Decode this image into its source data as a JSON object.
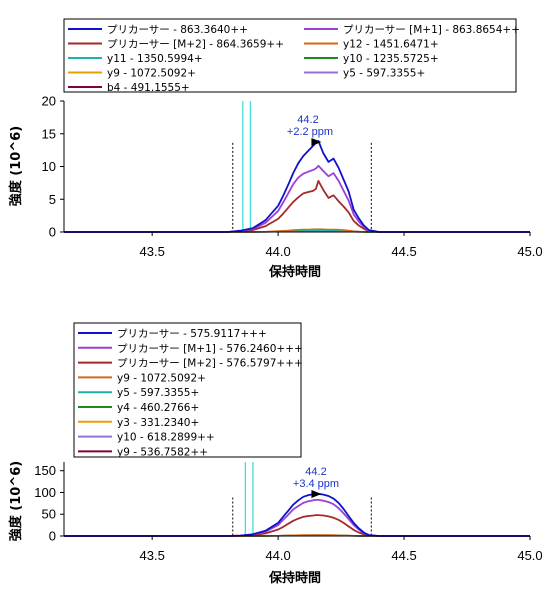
{
  "chart_data": [
    {
      "type": "line",
      "xlabel": "保持時間",
      "ylabel": "強度 (10^6)",
      "xlim": [
        43.15,
        45.0
      ],
      "ylim": [
        0,
        20
      ],
      "x_ticks": [
        "43.5",
        "44.0",
        "44.5",
        "45.0"
      ],
      "y_ticks": [
        "0",
        "5",
        "10",
        "15",
        "20"
      ],
      "legend_position": "top",
      "legend_columns": 2,
      "annotation": {
        "rt": "44.2",
        "ppm": "+2.2 ppm",
        "x": 44.18
      },
      "integration_bounds": [
        43.82,
        44.37
      ],
      "spectrum_markers": [
        43.86,
        43.89
      ],
      "x": [
        43.8,
        43.85,
        43.9,
        43.95,
        44.0,
        44.02,
        44.04,
        44.06,
        44.08,
        44.1,
        44.12,
        44.14,
        44.15,
        44.16,
        44.18,
        44.2,
        44.22,
        44.24,
        44.26,
        44.28,
        44.3,
        44.32,
        44.34,
        44.36,
        44.4
      ],
      "series": [
        {
          "name": "プリカーサー - 863.3640++",
          "color": "#1010d0",
          "values": [
            0,
            0.2,
            0.6,
            1.8,
            4.0,
            5.5,
            7.2,
            9.0,
            10.5,
            11.6,
            12.4,
            13.2,
            13.6,
            13.9,
            12.0,
            10.7,
            11.2,
            9.8,
            8.0,
            6.2,
            3.4,
            2.1,
            1.0,
            0.3,
            0
          ]
        },
        {
          "name": "プリカーサー [M+1] - 863.8654++",
          "color": "#9b3fd6",
          "values": [
            0,
            0.15,
            0.45,
            1.4,
            3.2,
            4.5,
            5.9,
            7.3,
            8.3,
            8.9,
            9.2,
            9.5,
            9.7,
            10.1,
            9.3,
            8.5,
            9.0,
            7.8,
            6.3,
            4.8,
            2.7,
            1.6,
            0.8,
            0.2,
            0
          ]
        },
        {
          "name": "プリカーサー [M+2] - 864.3659++",
          "color": "#a52a2a",
          "values": [
            0,
            0.1,
            0.3,
            0.9,
            2.0,
            2.8,
            3.7,
            4.6,
            5.3,
            5.9,
            6.1,
            6.3,
            6.6,
            7.8,
            6.4,
            5.2,
            5.6,
            4.7,
            3.9,
            3.0,
            1.7,
            1.0,
            0.5,
            0.1,
            0
          ]
        },
        {
          "name": "y12 - 1451.6471+",
          "color": "#d2691e",
          "values": [
            0,
            0,
            0.02,
            0.05,
            0.15,
            0.2,
            0.25,
            0.3,
            0.35,
            0.38,
            0.4,
            0.42,
            0.43,
            0.44,
            0.42,
            0.4,
            0.4,
            0.36,
            0.3,
            0.23,
            0.13,
            0.08,
            0.04,
            0.01,
            0
          ]
        },
        {
          "name": "y11 - 1350.5994+",
          "color": "#20b2aa",
          "values": [
            0,
            0,
            0.01,
            0.03,
            0.08,
            0.1,
            0.13,
            0.16,
            0.18,
            0.2,
            0.21,
            0.22,
            0.22,
            0.23,
            0.22,
            0.2,
            0.2,
            0.18,
            0.15,
            0.12,
            0.07,
            0.04,
            0.02,
            0,
            0
          ]
        },
        {
          "name": "y10 - 1235.5725+",
          "color": "#1a8a1a",
          "values": [
            0,
            0,
            0.01,
            0.03,
            0.08,
            0.11,
            0.14,
            0.17,
            0.19,
            0.21,
            0.22,
            0.23,
            0.23,
            0.24,
            0.22,
            0.21,
            0.21,
            0.19,
            0.16,
            0.12,
            0.07,
            0.04,
            0.02,
            0,
            0
          ]
        },
        {
          "name": "y9 - 1072.5092+",
          "color": "#e8a000",
          "values": [
            0,
            0,
            0.01,
            0.04,
            0.1,
            0.14,
            0.18,
            0.22,
            0.25,
            0.27,
            0.28,
            0.3,
            0.3,
            0.31,
            0.29,
            0.27,
            0.28,
            0.25,
            0.21,
            0.16,
            0.09,
            0.05,
            0.02,
            0,
            0
          ]
        },
        {
          "name": "y5 - 597.3355+",
          "color": "#9370db",
          "values": [
            0,
            0,
            0.01,
            0.02,
            0.05,
            0.07,
            0.09,
            0.11,
            0.12,
            0.13,
            0.14,
            0.15,
            0.15,
            0.15,
            0.14,
            0.13,
            0.14,
            0.12,
            0.1,
            0.08,
            0.05,
            0.03,
            0.01,
            0,
            0
          ]
        },
        {
          "name": "b4 - 491.1555+",
          "color": "#800040",
          "values": [
            0,
            0,
            0.01,
            0.02,
            0.04,
            0.05,
            0.06,
            0.07,
            0.08,
            0.09,
            0.09,
            0.1,
            0.1,
            0.1,
            0.1,
            0.09,
            0.09,
            0.08,
            0.07,
            0.05,
            0.03,
            0.02,
            0.01,
            0,
            0
          ]
        }
      ]
    },
    {
      "type": "line",
      "xlabel": "保持時間",
      "ylabel": "強度 (10^6)",
      "xlim": [
        43.15,
        45.0
      ],
      "ylim": [
        0,
        170
      ],
      "x_ticks": [
        "43.5",
        "44.0",
        "44.5",
        "45.0"
      ],
      "y_ticks": [
        "0",
        "50",
        "100",
        "150"
      ],
      "legend_position": "top",
      "legend_columns": 1,
      "annotation": {
        "rt": "44.2",
        "ppm": "+3.4 ppm",
        "x": 44.18
      },
      "integration_bounds": [
        43.82,
        44.37
      ],
      "spectrum_markers": [
        43.87,
        43.9
      ],
      "x": [
        43.8,
        43.85,
        43.9,
        43.95,
        44.0,
        44.02,
        44.04,
        44.06,
        44.08,
        44.1,
        44.12,
        44.14,
        44.15,
        44.16,
        44.18,
        44.2,
        44.22,
        44.24,
        44.26,
        44.28,
        44.3,
        44.32,
        44.34,
        44.36,
        44.4
      ],
      "series": [
        {
          "name": "プリカーサー - 575.9117+++",
          "color": "#1010d0",
          "values": [
            0,
            1,
            4,
            12,
            30,
            44,
            58,
            72,
            82,
            90,
            94,
            96,
            97,
            97,
            95,
            92,
            86,
            76,
            62,
            46,
            30,
            18,
            8,
            2,
            0
          ]
        },
        {
          "name": "プリカーサー [M+1] - 576.2460+++",
          "color": "#9b3fd6",
          "values": [
            0,
            1,
            3,
            10,
            25,
            37,
            49,
            61,
            69,
            76,
            80,
            82,
            83,
            83,
            81,
            78,
            73,
            64,
            52,
            39,
            25,
            15,
            7,
            2,
            0
          ]
        },
        {
          "name": "プリカーサー [M+2] - 576.5797+++",
          "color": "#a52a2a",
          "values": [
            0,
            0.5,
            2,
            6,
            15,
            21,
            28,
            35,
            40,
            44,
            46,
            47,
            48,
            48,
            47,
            45,
            42,
            37,
            30,
            22,
            14,
            8,
            4,
            1,
            0
          ]
        },
        {
          "name": "y9 - 1072.5092+",
          "color": "#d2691e",
          "values": [
            0,
            0,
            0.1,
            0.3,
            0.8,
            1.1,
            1.5,
            1.8,
            2.1,
            2.3,
            2.4,
            2.5,
            2.5,
            2.5,
            2.4,
            2.3,
            2.2,
            1.9,
            1.6,
            1.2,
            0.8,
            0.5,
            0.2,
            0,
            0
          ]
        },
        {
          "name": "y5 - 597.3355+",
          "color": "#20b2aa",
          "values": [
            0,
            0,
            0.1,
            0.2,
            0.6,
            0.8,
            1.1,
            1.4,
            1.6,
            1.7,
            1.8,
            1.9,
            1.9,
            1.9,
            1.8,
            1.7,
            1.6,
            1.4,
            1.2,
            0.9,
            0.6,
            0.3,
            0.1,
            0,
            0
          ]
        },
        {
          "name": "y4 - 460.2766+",
          "color": "#1a8a1a",
          "values": [
            0,
            0,
            0.1,
            0.2,
            0.5,
            0.7,
            0.9,
            1.1,
            1.3,
            1.4,
            1.5,
            1.5,
            1.5,
            1.5,
            1.5,
            1.4,
            1.3,
            1.1,
            0.9,
            0.7,
            0.5,
            0.3,
            0.1,
            0,
            0
          ]
        },
        {
          "name": "y3 - 331.2340+",
          "color": "#e8a000",
          "values": [
            0,
            0,
            0.1,
            0.3,
            0.7,
            1.0,
            1.3,
            1.6,
            1.8,
            2.0,
            2.1,
            2.1,
            2.2,
            2.2,
            2.1,
            2.0,
            1.9,
            1.7,
            1.4,
            1.0,
            0.7,
            0.4,
            0.2,
            0,
            0
          ]
        },
        {
          "name": "y10 - 618.2899++",
          "color": "#9370db",
          "values": [
            0,
            0,
            0.1,
            0.2,
            0.4,
            0.6,
            0.8,
            1.0,
            1.1,
            1.2,
            1.3,
            1.3,
            1.3,
            1.3,
            1.3,
            1.2,
            1.1,
            1.0,
            0.8,
            0.6,
            0.4,
            0.2,
            0.1,
            0,
            0
          ]
        },
        {
          "name": "y9 - 536.7582++",
          "color": "#800040",
          "values": [
            0,
            0,
            0.1,
            0.2,
            0.3,
            0.4,
            0.5,
            0.6,
            0.7,
            0.8,
            0.8,
            0.8,
            0.8,
            0.8,
            0.8,
            0.8,
            0.7,
            0.6,
            0.5,
            0.4,
            0.3,
            0.2,
            0.1,
            0,
            0
          ]
        }
      ]
    }
  ]
}
